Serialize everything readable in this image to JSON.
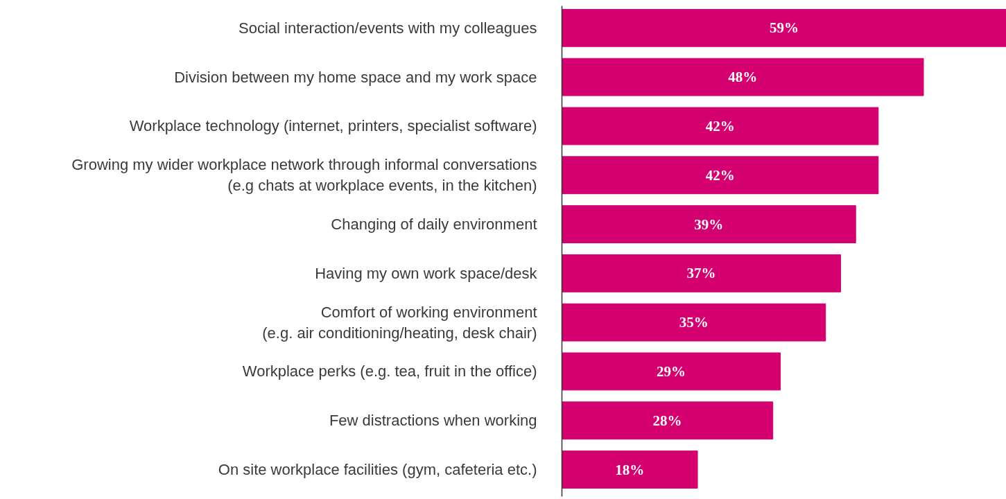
{
  "chart_data": {
    "type": "bar",
    "orientation": "horizontal",
    "categories": [
      "Social interaction/events with my colleagues",
      "Division between my home space and my work space",
      "Workplace technology (internet, printers, specialist software)",
      "Growing my wider workplace network through informal conversations\n(e.g chats at workplace events, in the kitchen)",
      "Changing of daily environment",
      "Having my own work space/desk",
      "Comfort of working environment\n(e.g. air conditioning/heating, desk chair)",
      "Workplace perks (e.g. tea, fruit in the office)",
      "Few distractions when working",
      "On site workplace facilities (gym, cafeteria etc.)"
    ],
    "values": [
      59,
      48,
      42,
      42,
      39,
      37,
      35,
      29,
      28,
      18
    ],
    "value_labels": [
      "59%",
      "48%",
      "42%",
      "42%",
      "39%",
      "37%",
      "35%",
      "29%",
      "28%",
      "18%"
    ],
    "color": "#d4006f"
  }
}
